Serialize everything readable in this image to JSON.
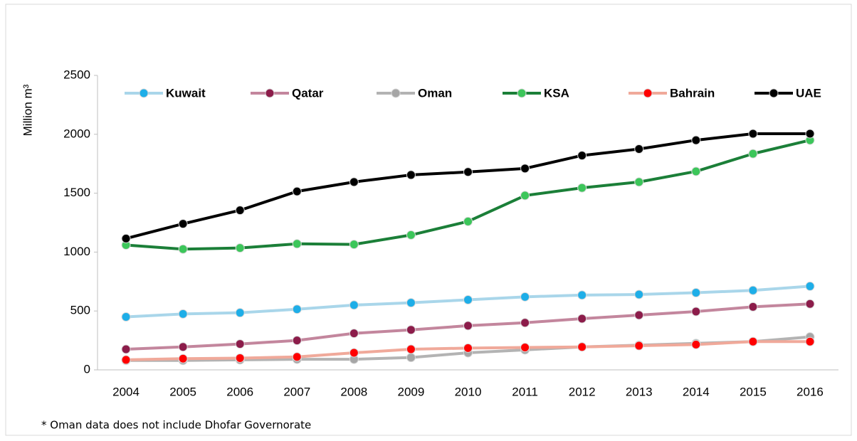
{
  "chart_data": {
    "type": "line",
    "y_label": "Million m³",
    "footnote": "* Oman data does not include Dhofar Governorate",
    "categories": [
      "2004",
      "2005",
      "2006",
      "2007",
      "2008",
      "2009",
      "2010",
      "2011",
      "2012",
      "2013",
      "2014",
      "2015",
      "2016"
    ],
    "series": [
      {
        "name": "Kuwait",
        "color": "#a9d6ea",
        "marker_color": "#1eaee8",
        "values": [
          450,
          475,
          485,
          515,
          550,
          570,
          595,
          620,
          635,
          640,
          655,
          675,
          710
        ]
      },
      {
        "name": "Qatar",
        "color": "#c3869d",
        "marker_color": "#8c1c4a",
        "values": [
          175,
          195,
          220,
          250,
          310,
          340,
          375,
          400,
          435,
          465,
          495,
          535,
          560
        ]
      },
      {
        "name": "Oman",
        "color": "#b3b3b3",
        "marker_color": "#a6a6a6",
        "values": [
          80,
          80,
          85,
          90,
          90,
          105,
          145,
          170,
          195,
          210,
          225,
          240,
          280
        ]
      },
      {
        "name": "KSA",
        "color": "#1b7f38",
        "marker_color": "#3cc65a",
        "values": [
          1060,
          1025,
          1035,
          1070,
          1065,
          1145,
          1260,
          1480,
          1545,
          1595,
          1685,
          1835,
          1950
        ]
      },
      {
        "name": "Bahrain",
        "color": "#f0a99a",
        "marker_color": "#ff0000",
        "values": [
          85,
          95,
          100,
          110,
          145,
          175,
          185,
          190,
          195,
          205,
          215,
          240,
          240
        ]
      },
      {
        "name": "UAE",
        "color": "#000000",
        "marker_color": "#000000",
        "values": [
          1115,
          1240,
          1355,
          1515,
          1595,
          1655,
          1680,
          1710,
          1820,
          1875,
          1950,
          2005,
          2005
        ]
      }
    ],
    "ylim": [
      0,
      2500
    ],
    "yticks": [
      0,
      500,
      1000,
      1500,
      2000,
      2500
    ],
    "grid": false,
    "legend": "top"
  }
}
